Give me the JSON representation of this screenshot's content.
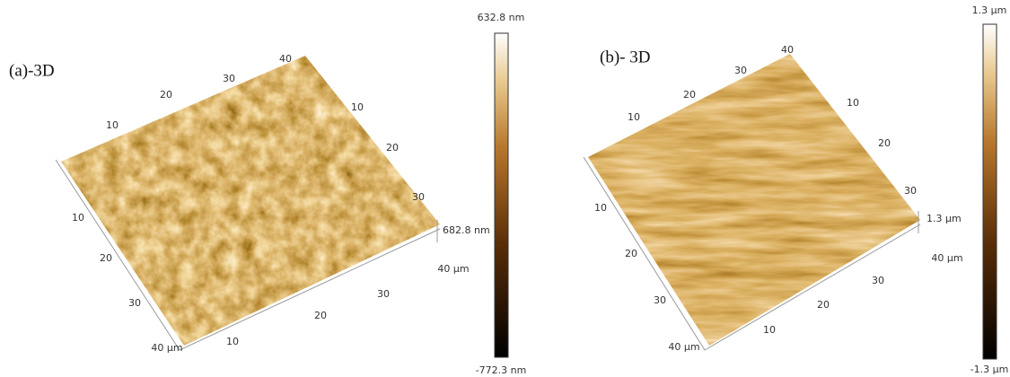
{
  "panels": [
    {
      "label": "(a)-3D",
      "colorbar": {
        "max": "632.8 nm",
        "min": "-772.3 nm"
      },
      "z_scale": "682.8 nm",
      "back_left_ticks": [
        "10",
        "20",
        "30",
        "40"
      ],
      "back_right_ticks": [
        "10",
        "20",
        "30"
      ],
      "front_left_ticks": [
        "10",
        "20",
        "30",
        "40 µm"
      ],
      "front_right_ticks": [
        "10",
        "20",
        "30",
        "40 µm"
      ]
    },
    {
      "label": "(b)- 3D",
      "colorbar": {
        "max": "1.3 µm",
        "min": "-1.3 µm"
      },
      "z_scale": "1.3 µm",
      "back_left_ticks": [
        "10",
        "20",
        "30",
        "40"
      ],
      "back_right_ticks": [
        "10",
        "20",
        "30"
      ],
      "front_left_ticks": [
        "10",
        "20",
        "30",
        "40 µm"
      ],
      "front_right_ticks": [
        "10",
        "20",
        "30",
        "40 µm"
      ]
    }
  ]
}
